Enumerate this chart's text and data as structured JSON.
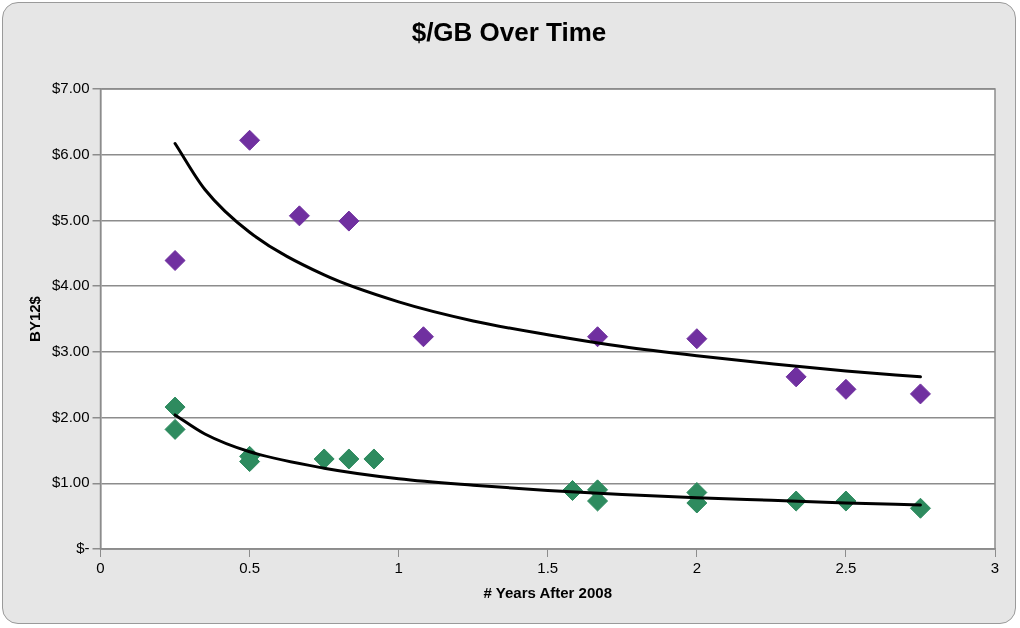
{
  "chart_data": {
    "type": "scatter",
    "title": "$/GB Over Time",
    "xlabel": "# Years After 2008",
    "ylabel": "BY12$",
    "xlim": [
      0,
      3
    ],
    "xticks": [
      0,
      0.5,
      1,
      1.5,
      2,
      2.5,
      3
    ],
    "ylim": [
      0,
      7
    ],
    "yticks": [
      {
        "value": 0,
        "label": "$-"
      },
      {
        "value": 1,
        "label": "$1.00"
      },
      {
        "value": 2,
        "label": "$2.00"
      },
      {
        "value": 3,
        "label": "$3.00"
      },
      {
        "value": 4,
        "label": "$4.00"
      },
      {
        "value": 5,
        "label": "$5.00"
      },
      {
        "value": 6,
        "label": "$6.00"
      },
      {
        "value": 7,
        "label": "$7.00"
      }
    ],
    "grid": "y",
    "legend": false,
    "marker": "diamond",
    "series": [
      {
        "color": "#7030a0",
        "x": [
          0.25,
          0.5,
          0.667,
          0.833,
          1.083,
          1.667,
          2.0,
          2.333,
          2.5,
          2.75
        ],
        "values": [
          4.39,
          6.22,
          5.07,
          4.99,
          3.23,
          3.23,
          3.2,
          2.62,
          2.43,
          2.36
        ]
      },
      {
        "color": "#2e8b5f",
        "x": [
          0.25,
          0.25,
          0.5,
          0.5,
          0.75,
          0.833,
          0.917,
          1.583,
          1.667,
          1.667,
          2.0,
          2.0,
          2.333,
          2.5,
          2.75
        ],
        "values": [
          2.16,
          1.82,
          1.41,
          1.33,
          1.37,
          1.37,
          1.37,
          0.89,
          0.9,
          0.73,
          0.86,
          0.7,
          0.73,
          0.73,
          0.62
        ]
      },
      {
        "type": "line",
        "marker": "none",
        "color": "#000000",
        "x": [
          0.25,
          0.35,
          0.5,
          0.75,
          1,
          1.25,
          1.5,
          1.75,
          2,
          2.25,
          2.5,
          2.75
        ],
        "values": [
          6.17,
          5.47,
          4.82,
          4.17,
          3.76,
          3.47,
          3.26,
          3.08,
          2.94,
          2.82,
          2.71,
          2.62
        ]
      },
      {
        "type": "line",
        "marker": "none",
        "color": "#000000",
        "x": [
          0.25,
          0.35,
          0.5,
          0.75,
          1,
          1.25,
          1.5,
          1.75,
          2,
          2.25,
          2.5,
          2.75
        ],
        "values": [
          2.04,
          1.75,
          1.48,
          1.23,
          1.07,
          0.97,
          0.89,
          0.83,
          0.78,
          0.74,
          0.7,
          0.67
        ]
      }
    ]
  }
}
